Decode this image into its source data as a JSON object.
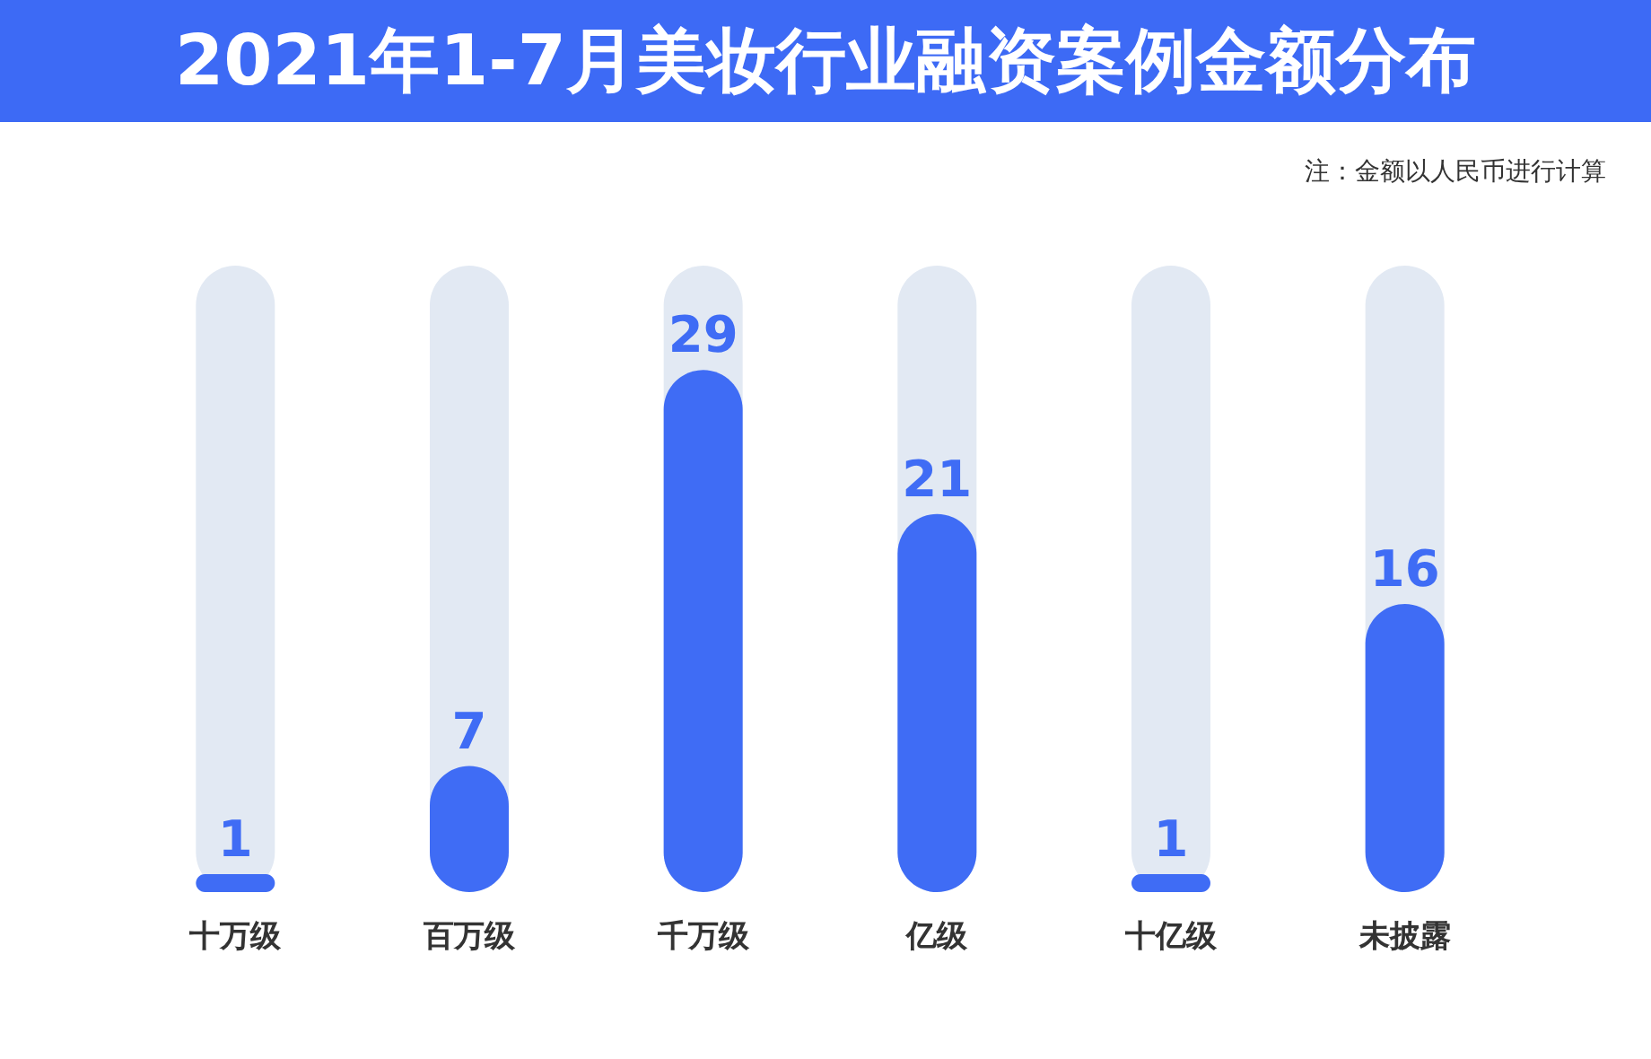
{
  "chart_data": {
    "type": "bar",
    "title": "2021年1-7月美妆行业融资案例金额分布",
    "annotations": [
      "注：金额以人民币进行计算"
    ],
    "categories": [
      "十万级",
      "百万级",
      "千万级",
      "亿级",
      "十亿级",
      "未披露"
    ],
    "values": [
      1,
      7,
      29,
      21,
      1,
      16
    ],
    "color": "#3f6cf5",
    "data_labels": true
  }
}
